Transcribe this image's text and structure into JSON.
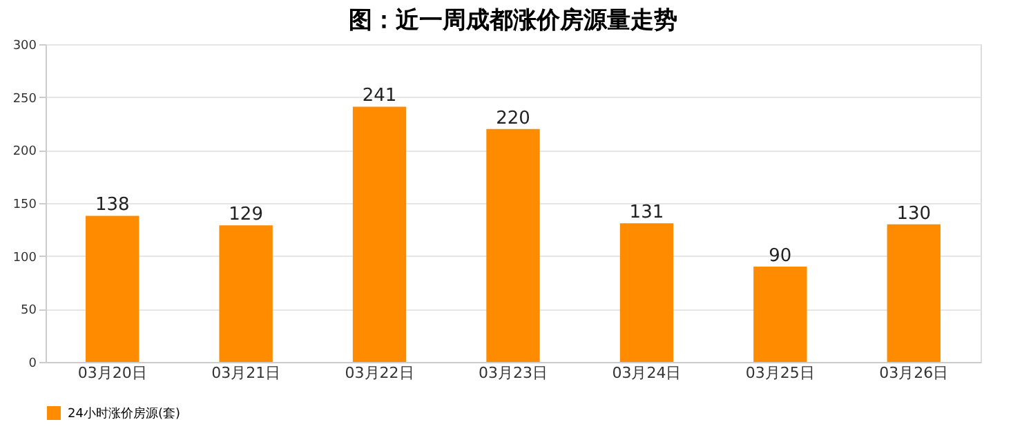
{
  "chart_data": {
    "type": "bar",
    "title": "图：近一周成都涨价房源量走势",
    "categories": [
      "03月20日",
      "03月21日",
      "03月22日",
      "03月23日",
      "03月24日",
      "03月25日",
      "03月26日"
    ],
    "series": [
      {
        "name": "24小时涨价房源(套)",
        "color": "#ff8c00",
        "values": [
          138,
          129,
          241,
          220,
          131,
          90,
          130
        ]
      }
    ],
    "ylim": [
      0,
      300
    ],
    "yticks": [
      0,
      50,
      100,
      150,
      200,
      250,
      300
    ],
    "grid": "y",
    "legend": "bottom",
    "data_labels": true
  }
}
